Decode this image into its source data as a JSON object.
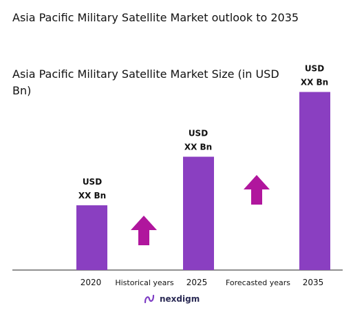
{
  "header": {
    "title": "Asia Pacific Military Satellite Market outlook to 2035",
    "subtitle": "Asia Pacific Military Satellite Market Size (in USD Bn)"
  },
  "colors": {
    "bar": "#8a3fc1",
    "arrow": "#b0169d",
    "axis": "#222222",
    "text": "#111111"
  },
  "chart_data": {
    "type": "bar",
    "categories": [
      "2020",
      "2025",
      "2035"
    ],
    "values": [
      1.0,
      1.75,
      2.75
    ],
    "data_labels": [
      [
        "USD",
        "XX Bn"
      ],
      [
        "USD",
        "XX Bn"
      ],
      [
        "USD",
        "XX Bn"
      ]
    ],
    "period_labels": [
      "Historical years",
      "Forecasted years"
    ],
    "growth_arrows": [
      "up",
      "up"
    ],
    "grid": false,
    "legend": "none"
  },
  "footer": {
    "brand": "nexdigm",
    "logo_icon": "nexdigm-logo-icon"
  }
}
